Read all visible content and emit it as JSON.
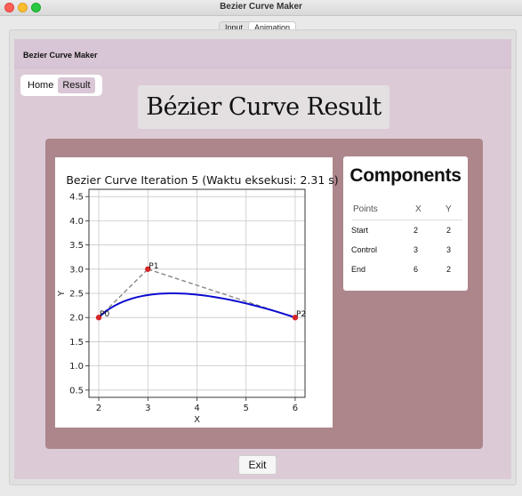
{
  "window": {
    "title": "Bezier Curve Maker"
  },
  "tabs": [
    {
      "label": "Input",
      "active": false
    },
    {
      "label": "Animation",
      "active": true
    }
  ],
  "app": {
    "header_title": "Bezier Curve Maker",
    "nav": {
      "home_label": "Home",
      "result_label": "Result",
      "selected": "Result"
    },
    "heading": "Bézier Curve Result",
    "exit_label": "Exit"
  },
  "components": {
    "title": "Components",
    "headers": [
      "Points",
      "X",
      "Y"
    ],
    "rows": [
      {
        "name": "Start",
        "x": "2",
        "y": "2"
      },
      {
        "name": "Control",
        "x": "3",
        "y": "3"
      },
      {
        "name": "End",
        "x": "6",
        "y": "2"
      }
    ]
  },
  "colors": {
    "curve": "#0b0bd0",
    "control_line": "#888888",
    "point": "#d62728",
    "panel": "#ad868c"
  },
  "chart_data": {
    "type": "line",
    "title": "Bezier Curve Iteration 5 (Waktu eksekusi: 2.31 s)",
    "xlabel": "X",
    "ylabel": "Y",
    "xlim": [
      1.8,
      6.2
    ],
    "ylim": [
      0.35,
      4.65
    ],
    "x_ticks": [
      2,
      3,
      4,
      5,
      6
    ],
    "y_ticks": [
      0.5,
      1.0,
      1.5,
      2.0,
      2.5,
      3.0,
      3.5,
      4.0,
      4.5
    ],
    "grid": true,
    "control_points": [
      {
        "label": "P0",
        "x": 2,
        "y": 2
      },
      {
        "label": "P1",
        "x": 3,
        "y": 3
      },
      {
        "label": "P2",
        "x": 6,
        "y": 2
      }
    ],
    "curve_iterations": 5
  }
}
